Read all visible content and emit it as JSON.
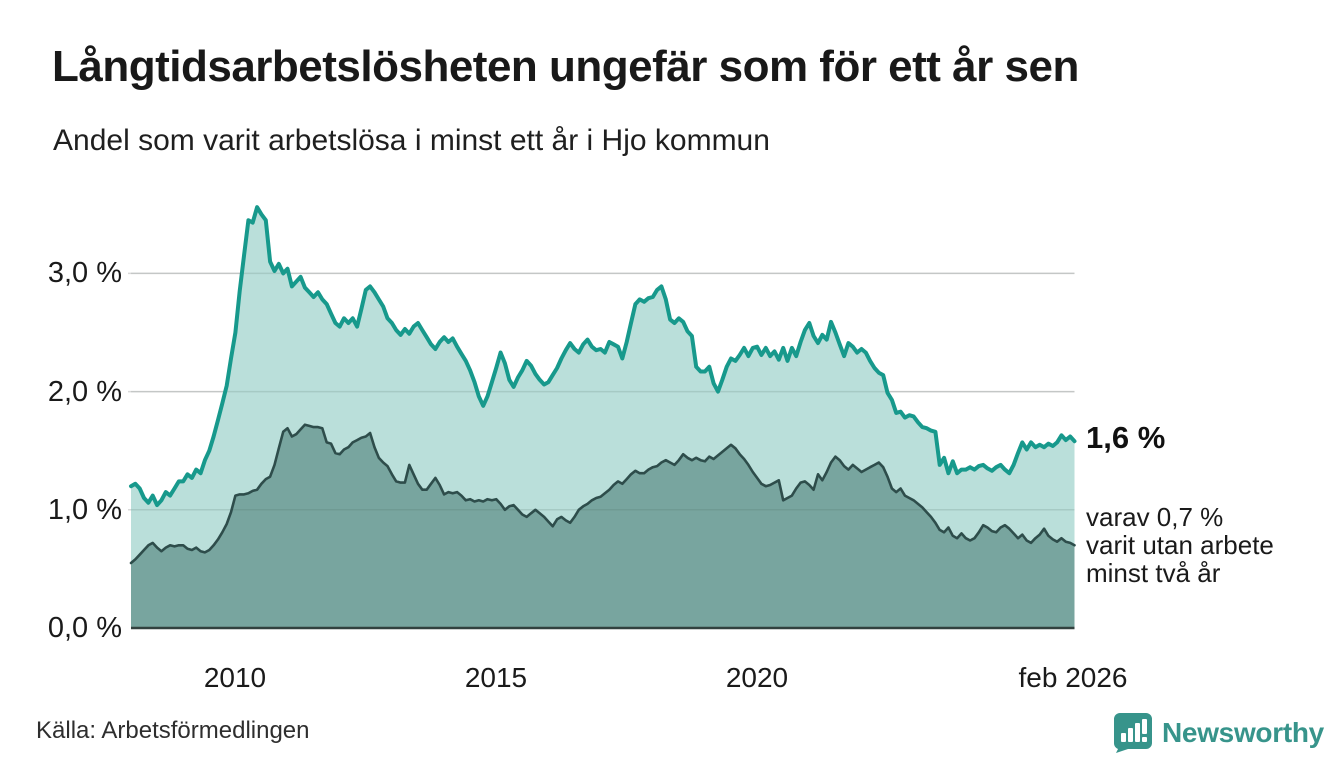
{
  "header": {
    "title": "Långtidsarbetslösheten ungefär som för ett år sen",
    "subtitle": "Andel som varit arbetslösa i minst ett år i Hjo kommun"
  },
  "footer": {
    "source": "Källa: Arbetsförmedlingen",
    "brand": "Newsworthy"
  },
  "colors": {
    "total_line": "#17998c",
    "total_fill": "#b2dcd6",
    "twoyear_line": "#2e4d4b",
    "twoyear_fill": "#74a19c",
    "gridline": "#d9d9d9",
    "baseline": "#32413f",
    "brand_teal": "#37948b",
    "text": "#1a1a1a"
  },
  "chart_data": {
    "type": "area",
    "title": "Långtidsarbetslösheten ungefär som för ett år sen",
    "subtitle": "Andel som varit arbetslösa i minst ett år i Hjo kommun",
    "x_description": "monthly, Jan 2008 – Feb 2026",
    "xlim": [
      2008.0,
      2026.083
    ],
    "ylim": [
      0,
      3.7
    ],
    "grid": "horizontal",
    "xticks": [
      {
        "label": "2010",
        "year": 2010
      },
      {
        "label": "2015",
        "year": 2015
      },
      {
        "label": "2020",
        "year": 2020
      },
      {
        "label": "feb 2026",
        "year": 2026.083
      }
    ],
    "yticks": [
      {
        "label": "0,0 %",
        "value": 0
      },
      {
        "label": "1,0 %",
        "value": 1
      },
      {
        "label": "2,0 %",
        "value": 2
      },
      {
        "label": "3,0 %",
        "value": 3
      }
    ],
    "annotations": {
      "end_value_label": "1,6 %",
      "sub_label_line1": "varav 0,7 %",
      "sub_label_line2": "varit utan arbete",
      "sub_label_line3": "minst två år"
    },
    "series": [
      {
        "name": "arbetslösa minst ett år",
        "end_value": 1.6,
        "line_color": "#17998c",
        "fill_color": "#b2dcd6",
        "values": [
          1.2,
          1.22,
          1.18,
          1.1,
          1.06,
          1.12,
          1.04,
          1.08,
          1.15,
          1.12,
          1.18,
          1.24,
          1.24,
          1.3,
          1.27,
          1.34,
          1.31,
          1.42,
          1.5,
          1.62,
          1.76,
          1.9,
          2.05,
          2.28,
          2.5,
          2.85,
          3.15,
          3.45,
          3.43,
          3.56,
          3.5,
          3.45,
          3.1,
          3.02,
          3.08,
          3.0,
          3.04,
          2.89,
          2.93,
          2.97,
          2.88,
          2.84,
          2.8,
          2.84,
          2.78,
          2.74,
          2.66,
          2.58,
          2.55,
          2.62,
          2.58,
          2.62,
          2.55,
          2.7,
          2.86,
          2.89,
          2.84,
          2.78,
          2.72,
          2.62,
          2.58,
          2.52,
          2.48,
          2.53,
          2.49,
          2.55,
          2.58,
          2.52,
          2.46,
          2.4,
          2.36,
          2.42,
          2.46,
          2.42,
          2.45,
          2.38,
          2.32,
          2.26,
          2.18,
          2.08,
          1.96,
          1.88,
          1.96,
          2.08,
          2.2,
          2.33,
          2.24,
          2.1,
          2.04,
          2.12,
          2.18,
          2.26,
          2.22,
          2.15,
          2.1,
          2.06,
          2.08,
          2.14,
          2.2,
          2.28,
          2.35,
          2.41,
          2.36,
          2.33,
          2.4,
          2.44,
          2.38,
          2.35,
          2.36,
          2.33,
          2.42,
          2.4,
          2.38,
          2.28,
          2.42,
          2.58,
          2.74,
          2.78,
          2.76,
          2.79,
          2.8,
          2.86,
          2.89,
          2.78,
          2.61,
          2.58,
          2.62,
          2.59,
          2.51,
          2.47,
          2.21,
          2.17,
          2.17,
          2.21,
          2.07,
          2.0,
          2.1,
          2.21,
          2.28,
          2.26,
          2.31,
          2.37,
          2.3,
          2.37,
          2.38,
          2.31,
          2.37,
          2.3,
          2.34,
          2.27,
          2.37,
          2.26,
          2.37,
          2.3,
          2.42,
          2.52,
          2.58,
          2.47,
          2.41,
          2.48,
          2.44,
          2.59,
          2.5,
          2.4,
          2.3,
          2.41,
          2.38,
          2.33,
          2.36,
          2.33,
          2.26,
          2.2,
          2.16,
          2.14,
          1.99,
          1.93,
          1.82,
          1.83,
          1.78,
          1.8,
          1.79,
          1.74,
          1.7,
          1.69,
          1.67,
          1.66,
          1.38,
          1.44,
          1.31,
          1.41,
          1.31,
          1.34,
          1.34,
          1.36,
          1.34,
          1.37,
          1.38,
          1.35,
          1.33,
          1.36,
          1.38,
          1.34,
          1.31,
          1.38,
          1.48,
          1.57,
          1.51,
          1.57,
          1.53,
          1.55,
          1.53,
          1.56,
          1.54,
          1.57,
          1.63,
          1.59,
          1.62,
          1.58
        ]
      },
      {
        "name": "varav arbetslösa minst två år",
        "end_value": 0.7,
        "line_color": "#2e4d4b",
        "fill_color": "#74a19c",
        "values": [
          0.55,
          0.58,
          0.62,
          0.66,
          0.7,
          0.72,
          0.68,
          0.65,
          0.68,
          0.7,
          0.69,
          0.7,
          0.7,
          0.67,
          0.66,
          0.68,
          0.65,
          0.64,
          0.66,
          0.7,
          0.75,
          0.81,
          0.88,
          0.98,
          1.12,
          1.13,
          1.13,
          1.14,
          1.16,
          1.17,
          1.22,
          1.26,
          1.28,
          1.38,
          1.52,
          1.66,
          1.69,
          1.62,
          1.64,
          1.68,
          1.72,
          1.71,
          1.7,
          1.7,
          1.69,
          1.57,
          1.56,
          1.48,
          1.47,
          1.51,
          1.53,
          1.57,
          1.59,
          1.61,
          1.62,
          1.65,
          1.53,
          1.44,
          1.4,
          1.37,
          1.3,
          1.24,
          1.23,
          1.23,
          1.38,
          1.3,
          1.22,
          1.17,
          1.17,
          1.22,
          1.27,
          1.21,
          1.13,
          1.15,
          1.14,
          1.15,
          1.12,
          1.08,
          1.09,
          1.07,
          1.08,
          1.07,
          1.09,
          1.08,
          1.09,
          1.05,
          1.0,
          1.03,
          1.04,
          1.0,
          0.96,
          0.94,
          0.97,
          1.0,
          0.97,
          0.94,
          0.9,
          0.86,
          0.92,
          0.94,
          0.91,
          0.89,
          0.94,
          1.0,
          1.03,
          1.05,
          1.08,
          1.1,
          1.11,
          1.14,
          1.17,
          1.21,
          1.24,
          1.22,
          1.26,
          1.3,
          1.33,
          1.31,
          1.31,
          1.34,
          1.36,
          1.37,
          1.4,
          1.42,
          1.4,
          1.38,
          1.42,
          1.47,
          1.44,
          1.42,
          1.44,
          1.42,
          1.41,
          1.45,
          1.43,
          1.46,
          1.49,
          1.52,
          1.55,
          1.52,
          1.47,
          1.43,
          1.38,
          1.32,
          1.27,
          1.22,
          1.2,
          1.21,
          1.23,
          1.25,
          1.08,
          1.1,
          1.12,
          1.18,
          1.23,
          1.24,
          1.21,
          1.17,
          1.3,
          1.25,
          1.32,
          1.4,
          1.45,
          1.42,
          1.37,
          1.34,
          1.38,
          1.35,
          1.32,
          1.34,
          1.36,
          1.38,
          1.4,
          1.36,
          1.28,
          1.18,
          1.15,
          1.18,
          1.12,
          1.1,
          1.08,
          1.05,
          1.02,
          0.98,
          0.94,
          0.89,
          0.83,
          0.81,
          0.85,
          0.78,
          0.76,
          0.8,
          0.76,
          0.74,
          0.76,
          0.81,
          0.87,
          0.85,
          0.82,
          0.81,
          0.85,
          0.87,
          0.84,
          0.8,
          0.76,
          0.79,
          0.74,
          0.72,
          0.76,
          0.79,
          0.84,
          0.78,
          0.75,
          0.73,
          0.76,
          0.73,
          0.72,
          0.7
        ]
      }
    ]
  }
}
